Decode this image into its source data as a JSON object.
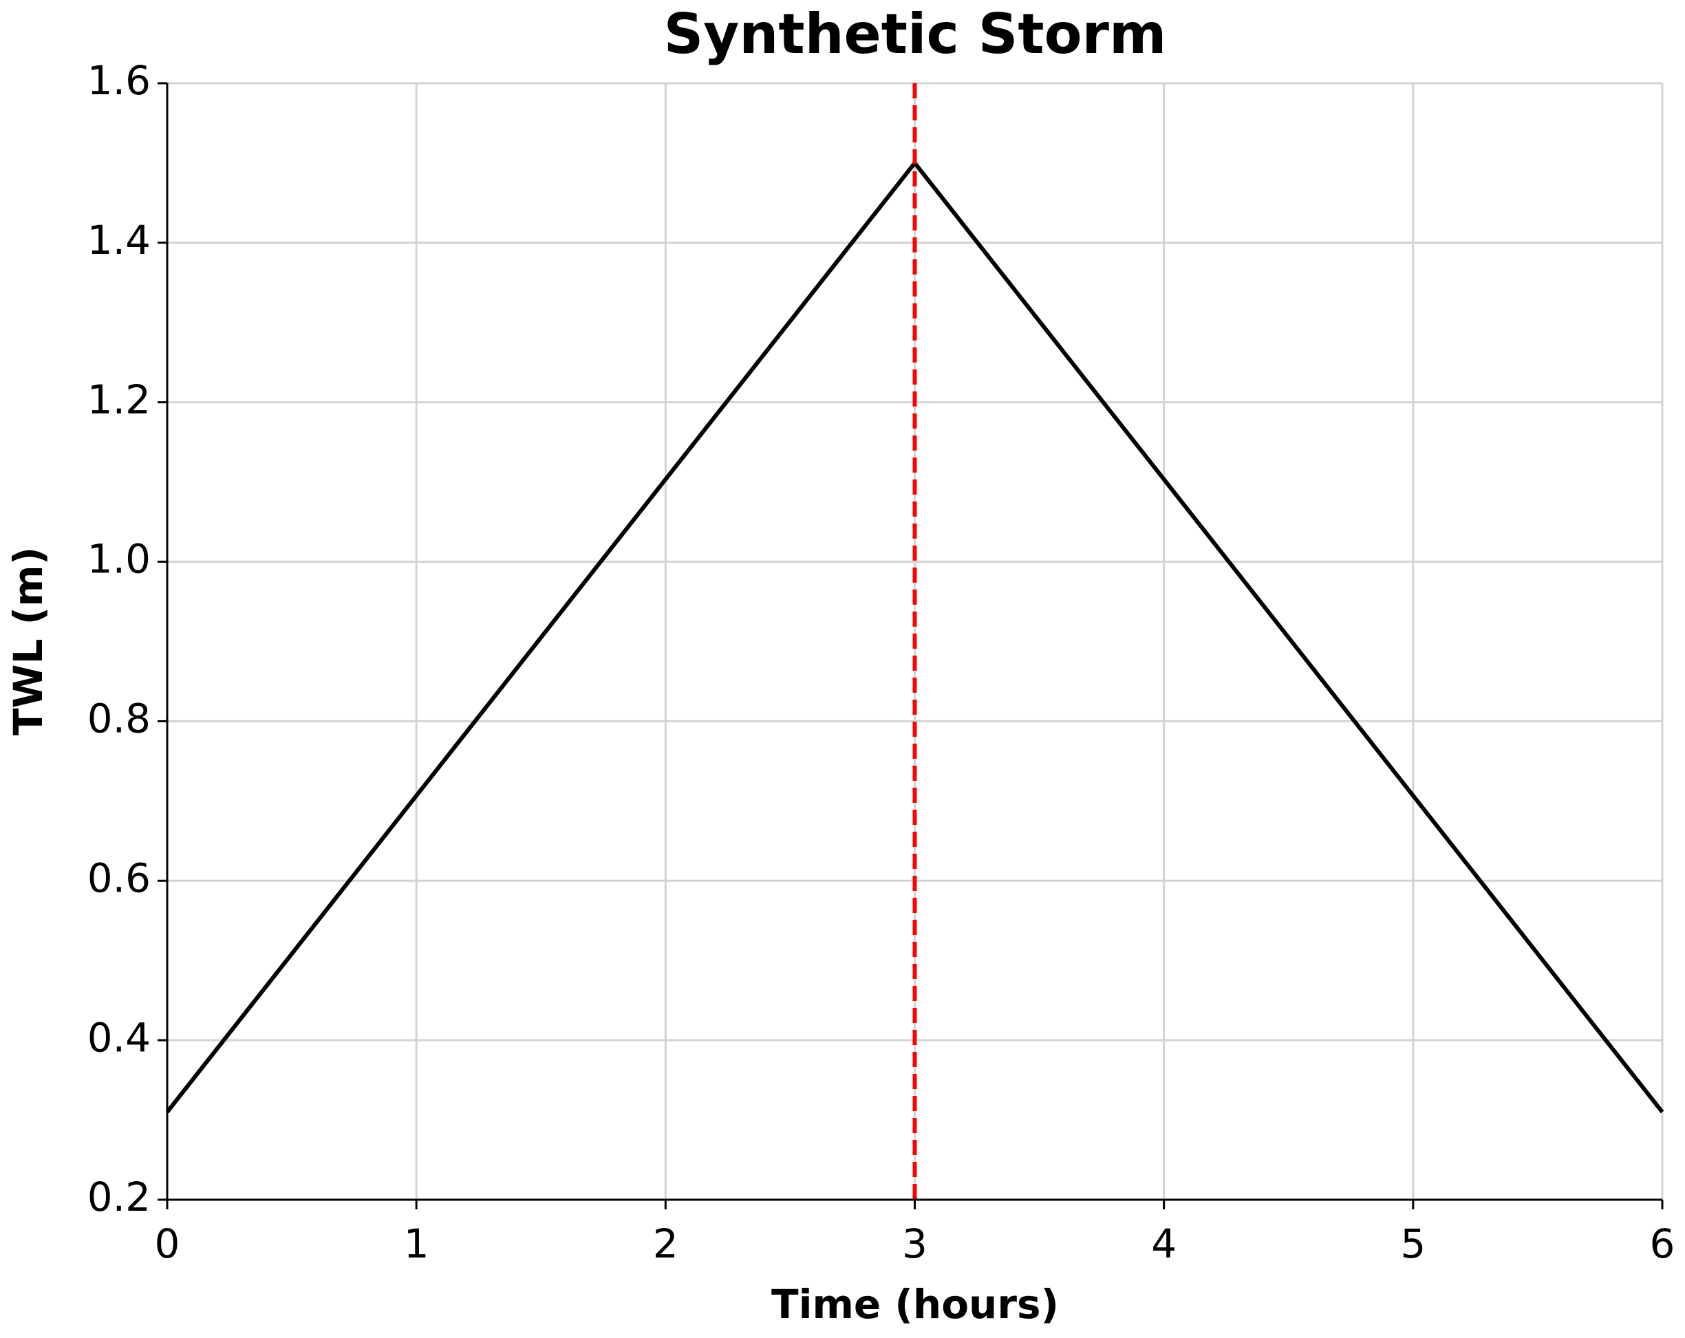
{
  "chart_data": {
    "type": "line",
    "title": "Synthetic Storm",
    "x_label": "Time (hours)",
    "y_label": "TWL (m)",
    "x": [
      0,
      3,
      6
    ],
    "series": [
      {
        "color": "#000000",
        "values": [
          0.31,
          1.5,
          0.31
        ]
      }
    ],
    "vline": {
      "x": 3,
      "color": "#ff0000"
    },
    "xlim": [
      0,
      6
    ],
    "xticks": [
      0,
      1,
      2,
      3,
      4,
      5,
      6
    ],
    "ylim": [
      0.2,
      1.6
    ],
    "yticks": [
      0.2,
      0.4,
      0.6,
      0.8,
      {
        "value": 1.0,
        "label": "1.0"
      },
      1.2,
      1.4,
      1.6
    ],
    "grid": true
  }
}
